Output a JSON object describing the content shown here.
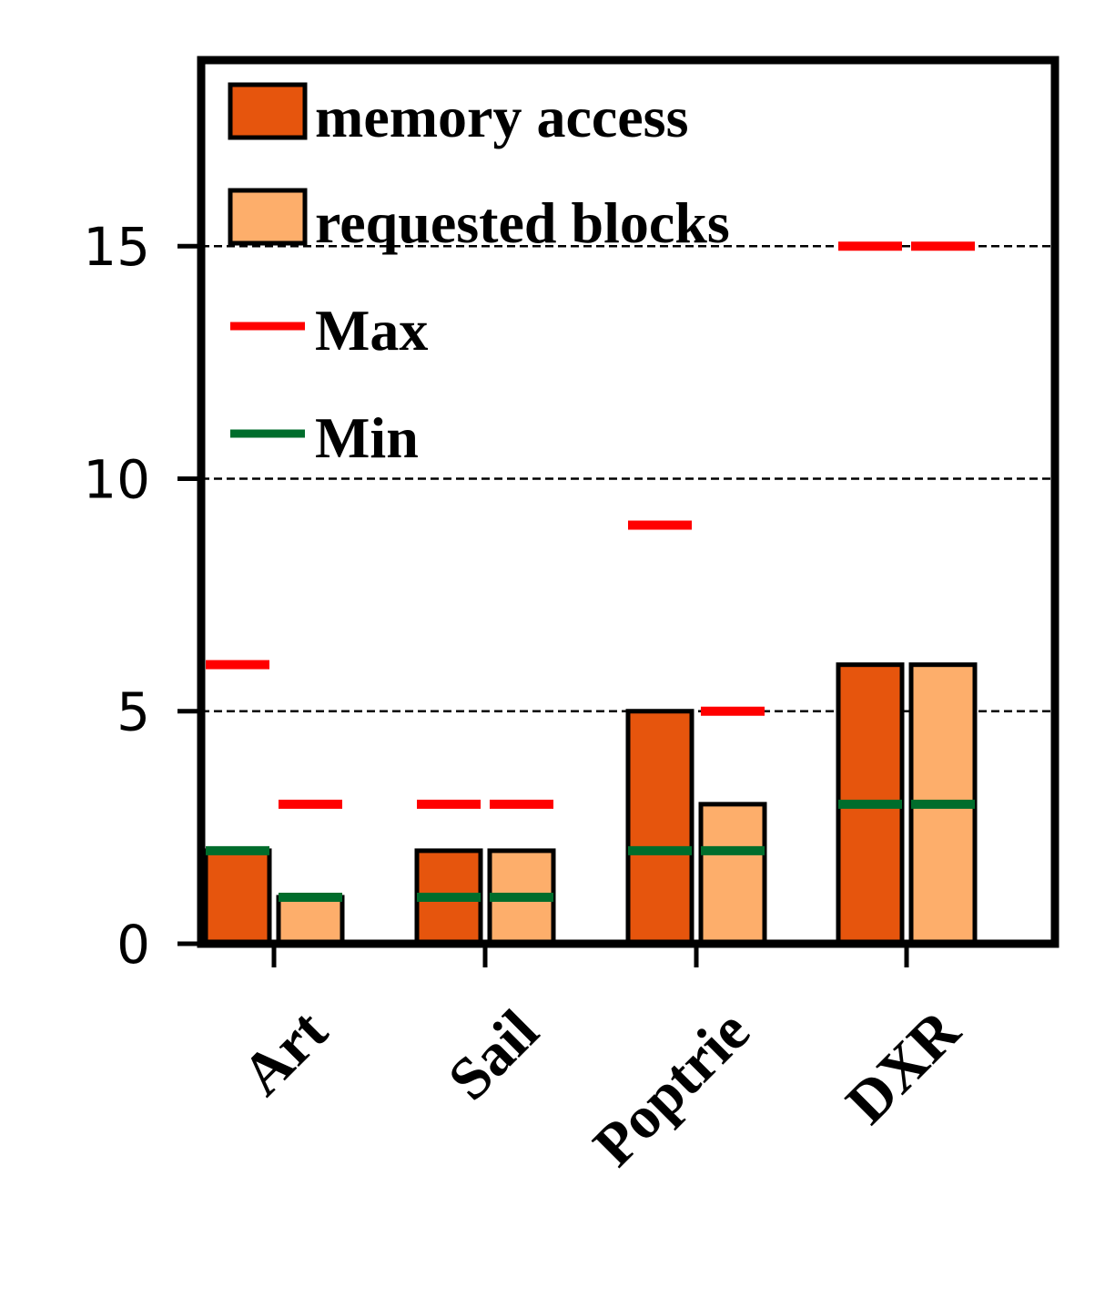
{
  "chart_data": {
    "type": "bar",
    "categories": [
      "Art",
      "Sail",
      "Poptrie",
      "DXR"
    ],
    "series": [
      {
        "name": "memory access",
        "color": "#e6550d",
        "values": [
          2,
          2,
          5,
          6
        ],
        "max": [
          6,
          3,
          9,
          15
        ],
        "min": [
          2,
          1,
          2,
          3
        ]
      },
      {
        "name": "requested blocks",
        "color": "#fdae6b",
        "values": [
          1,
          2,
          3,
          6
        ],
        "max": [
          3,
          3,
          5,
          15
        ],
        "min": [
          1,
          1,
          2,
          3
        ]
      }
    ],
    "markers": [
      {
        "name": "Max",
        "color": "#ff0000"
      },
      {
        "name": "Min",
        "color": "#006d2c"
      }
    ],
    "ylim": [
      0,
      19
    ],
    "yticks": [
      "0",
      "5",
      "10",
      "15"
    ],
    "grid": "horizontal dashed at major y ticks",
    "legend_position": "top-left"
  }
}
